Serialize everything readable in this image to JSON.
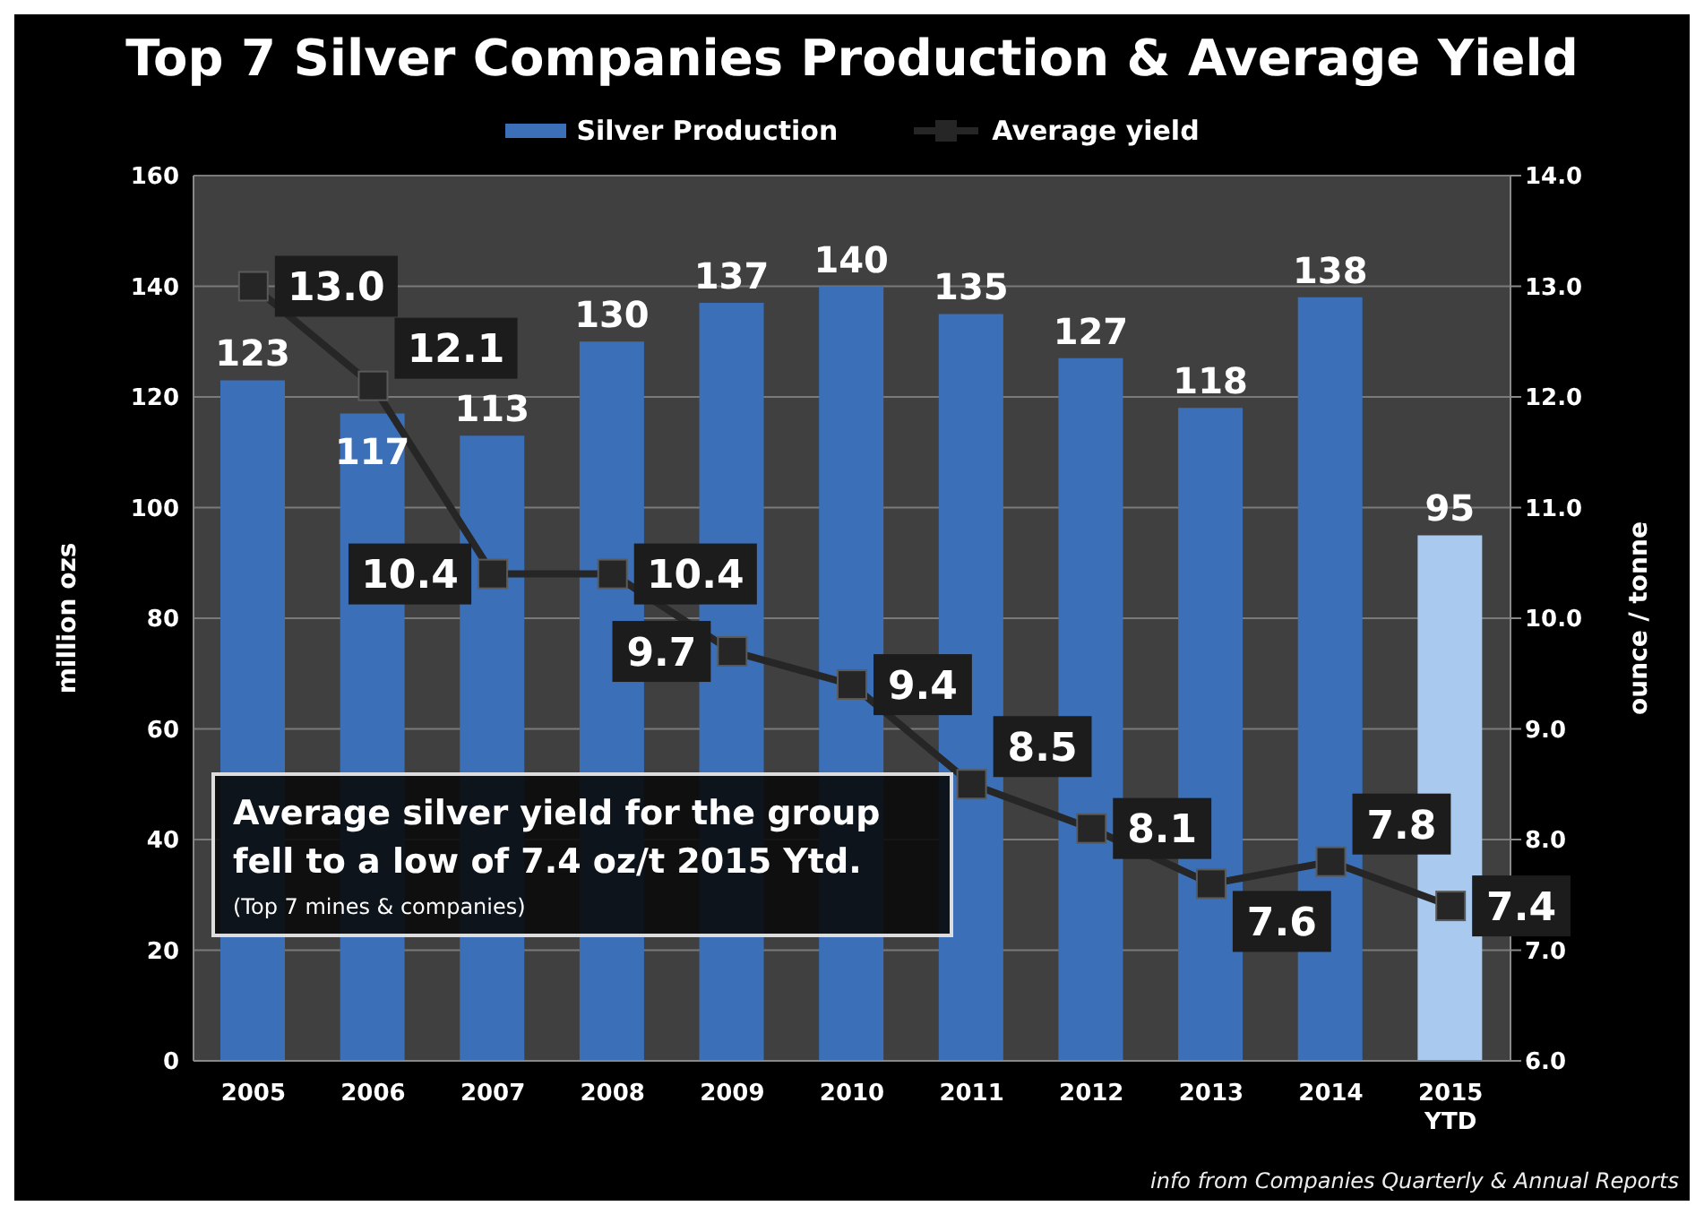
{
  "chart_data": {
    "type": "bar",
    "title": "Top 7 Silver Companies Production & Average Yield",
    "ylabel": "million ozs",
    "y2label": "ounce / tonne",
    "categories": [
      "2005",
      "2006",
      "2007",
      "2008",
      "2009",
      "2010",
      "2011",
      "2012",
      "2013",
      "2014",
      "2015 YTD"
    ],
    "series": [
      {
        "name": "Silver Production",
        "color": "#3b70b8",
        "colors": [
          "#3b70b8",
          "#3b70b8",
          "#3b70b8",
          "#3b70b8",
          "#3b70b8",
          "#3b70b8",
          "#3b70b8",
          "#3b70b8",
          "#3b70b8",
          "#3b70b8",
          "#a9c9ef"
        ],
        "values": [
          123,
          117,
          113,
          130,
          137,
          140,
          135,
          127,
          118,
          138,
          95
        ],
        "value_labels": [
          "123",
          "117",
          "113",
          "130",
          "137",
          "140",
          "135",
          "127",
          "118",
          "138",
          "95"
        ]
      },
      {
        "name": "Average yield",
        "type": "line",
        "axis": "y2",
        "color": "#262626",
        "marker": "square",
        "values": [
          13.0,
          12.1,
          10.4,
          10.4,
          9.7,
          9.4,
          8.5,
          8.1,
          7.6,
          7.8,
          7.4
        ],
        "value_labels": [
          "13.0",
          "12.1",
          "10.4",
          "10.4",
          "9.7",
          "9.4",
          "8.5",
          "8.1",
          "7.6",
          "7.8",
          "7.4"
        ]
      }
    ],
    "ylim": [
      0,
      160
    ],
    "yticks": [
      0,
      20,
      40,
      60,
      80,
      100,
      120,
      140,
      160
    ],
    "y2lim": [
      6,
      14
    ],
    "y2ticks": [
      {
        "value": 6,
        "label": "6.0"
      },
      {
        "value": 7,
        "label": "7.0"
      },
      {
        "value": 8,
        "label": "8.0"
      },
      {
        "value": 9,
        "label": "9.0"
      },
      {
        "value": 10,
        "label": "10.0"
      },
      {
        "value": 11,
        "label": "11.0"
      },
      {
        "value": 12,
        "label": "12.0"
      },
      {
        "value": 13,
        "label": "13.0"
      },
      {
        "value": 14,
        "label": "14.0"
      }
    ],
    "grid": "y",
    "legend": "top",
    "annotations": [
      "Average silver yield for the group fell to a low of 7.4 oz/t 2015 Ytd.",
      "(Top 7 mines & companies)",
      "info from Companies Quarterly & Annual Reports"
    ]
  }
}
